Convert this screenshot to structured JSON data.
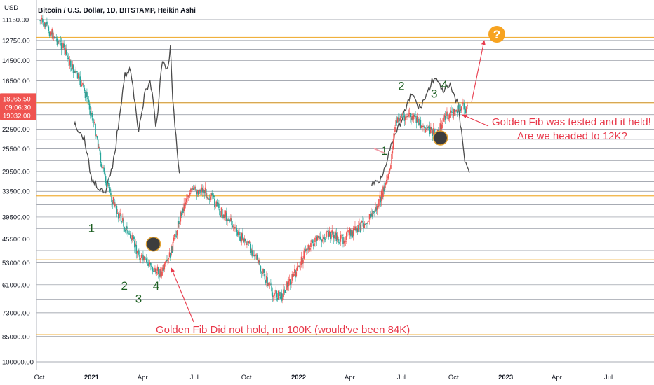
{
  "chart_data": {
    "type": "candlestick",
    "title": "Bitcoin / U.S. Dollar, 1D, BITSTAMP, Heikin Ashi",
    "ylabel": "USD",
    "y_scale": "log, inverted",
    "y_tick_labels": [
      "11150.00",
      "12750.00",
      "14500.00",
      "16500.00",
      "18965.50",
      "19032.00",
      "22500.00",
      "25500.00",
      "29500.00",
      "33500.00",
      "39500.00",
      "45500.00",
      "53000.00",
      "61000.00",
      "73000.00",
      "85000.00",
      "100000.00"
    ],
    "x_tick_labels": [
      "Oct",
      "2021",
      "Apr",
      "Jul",
      "Oct",
      "2022",
      "Apr",
      "Jul",
      "Oct",
      "2023",
      "Apr",
      "Jul"
    ],
    "price_label": {
      "value": "18965.50",
      "countdown": "09:06:30",
      "prev": "19032.00"
    },
    "fib_levels": [
      12500,
      19000,
      34500,
      52000,
      84000
    ],
    "series": [
      {
        "name": "",
        "kind": "heikin-ashi candles",
        "x": [
          "2020-10-01",
          "2020-10-20",
          "2020-11-10",
          "2020-11-25",
          "2020-12-10",
          "2020-12-25",
          "2021-01-10",
          "2021-01-20",
          "2021-02-01",
          "2021-02-15",
          "2021-03-01",
          "2021-03-15",
          "2021-04-01",
          "2021-04-15",
          "2021-04-25",
          "2021-05-05",
          "2021-05-15",
          "2021-05-25",
          "2021-06-05",
          "2021-06-20",
          "2021-07-01",
          "2021-07-15",
          "2021-08-01",
          "2021-08-15",
          "2021-09-01",
          "2021-09-15",
          "2021-10-01",
          "2021-10-15",
          "2021-10-25",
          "2021-11-05",
          "2021-11-15",
          "2021-12-01",
          "2021-12-15",
          "2022-01-01",
          "2022-01-15",
          "2022-02-01",
          "2022-02-15",
          "2022-03-01",
          "2022-03-15",
          "2022-04-01",
          "2022-04-15",
          "2022-05-01",
          "2022-05-10",
          "2022-05-20",
          "2022-06-01",
          "2022-06-10",
          "2022-06-20",
          "2022-07-01",
          "2022-07-15",
          "2022-08-01",
          "2022-08-15",
          "2022-09-01",
          "2022-09-15",
          "2022-10-01",
          "2022-10-15",
          "2022-10-26"
        ],
        "close": [
          11200,
          12000,
          13200,
          14900,
          16400,
          18500,
          23300,
          29000,
          33500,
          38000,
          42000,
          46500,
          52000,
          54000,
          56000,
          56500,
          53000,
          47000,
          40000,
          34000,
          33500,
          33000,
          35000,
          38000,
          40000,
          44000,
          46500,
          50000,
          55000,
          59000,
          64000,
          66000,
          60000,
          55000,
          48000,
          46000,
          45000,
          44000,
          46000,
          44000,
          43000,
          40000,
          39000,
          37000,
          33000,
          30000,
          22000,
          20500,
          20800,
          21500,
          22500,
          23400,
          21000,
          20200,
          19500,
          19600
        ]
      },
      {
        "name": "",
        "kind": "fractal projection",
        "x": [
          "2020-12-01",
          "2020-12-20",
          "2021-01-01",
          "2021-01-10",
          "2021-01-25",
          "2021-02-10",
          "2021-02-28",
          "2021-03-10",
          "2021-03-25",
          "2021-04-05",
          "2021-04-15",
          "2021-04-25",
          "2021-05-05",
          "2021-05-15",
          "2021-05-20",
          "2021-05-25",
          "2021-06-05",
          "2022-05-10",
          "2022-05-25",
          "2022-06-10",
          "2022-06-25",
          "2022-07-10",
          "2022-07-20",
          "2022-08-01",
          "2022-08-15",
          "2022-08-28",
          "2022-09-10",
          "2022-09-25",
          "2022-10-10",
          "2022-10-20",
          "2022-10-30"
        ],
        "close": [
          21500,
          24000,
          31000,
          32000,
          34500,
          27000,
          16000,
          15300,
          22500,
          18000,
          16500,
          22500,
          14800,
          15200,
          13400,
          19500,
          30000,
          32000,
          31000,
          26000,
          22500,
          19600,
          17800,
          19800,
          18000,
          16000,
          17600,
          17200,
          19500,
          27000,
          30000
        ]
      }
    ],
    "wave_counts": [
      {
        "label": "1",
        "x": "2021-01-01",
        "price": 43500
      },
      {
        "label": "2",
        "x": "2021-02-28",
        "price": 63000
      },
      {
        "label": "3",
        "x": "2021-03-25",
        "price": 68500
      },
      {
        "label": "4",
        "x": "2021-04-25",
        "price": 63000
      },
      {
        "label": "1",
        "x": "2022-06-01",
        "price": 26500
      },
      {
        "label": "2",
        "x": "2022-07-01",
        "price": 17500
      },
      {
        "label": "3",
        "x": "2022-08-28",
        "price": 18400
      },
      {
        "label": "4",
        "x": "2022-09-15",
        "price": 17400
      }
    ],
    "annotations": [
      "Golden Fib Did not hold, no 100K (would've been 84K)",
      "Golden Fib was tested and it held!",
      "Are we headed to 12K?",
      "?"
    ]
  }
}
